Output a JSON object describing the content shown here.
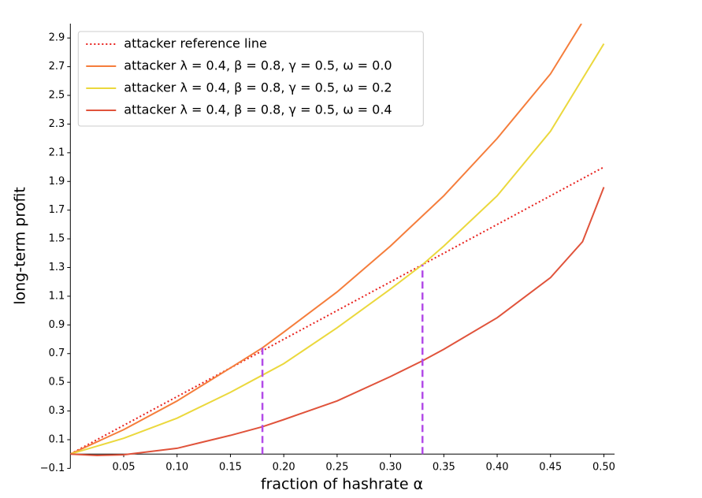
{
  "chart_data": {
    "type": "line",
    "xlabel": "fraction of hashrate α",
    "ylabel": "long-term profit",
    "xlim": [
      0,
      0.51
    ],
    "ylim": [
      -0.1,
      3.0
    ],
    "xticks": [
      0.05,
      {
        "value": 0.1,
        "label": "0.10"
      },
      0.15,
      {
        "value": 0.2,
        "label": "0.20"
      },
      0.25,
      {
        "value": 0.3,
        "label": "0.30"
      },
      0.35,
      {
        "value": 0.4,
        "label": "0.40"
      },
      0.45,
      {
        "value": 0.5,
        "label": "0.50"
      }
    ],
    "yticks": [
      {
        "value": -0.1,
        "label": "−0.1"
      },
      0.1,
      0.3,
      0.5,
      0.7,
      0.9,
      1.1,
      1.3,
      1.5,
      1.7,
      1.9,
      2.1,
      2.3,
      2.5,
      2.7,
      2.9
    ],
    "legend": "upper-left",
    "series": [
      {
        "name": "attacker reference line",
        "color": "#e8201c",
        "style": "dotted",
        "x": [
          0,
          0.5
        ],
        "values": [
          0,
          2.0
        ]
      },
      {
        "name": "attacker λ = 0.4, β = 0.8, γ = 0.5, ω = 0.0",
        "color": "#f57d3b",
        "style": "solid",
        "x": [
          0,
          0.05,
          0.1,
          0.15,
          0.18,
          0.2,
          0.25,
          0.3,
          0.35,
          0.4,
          0.45,
          0.479
        ],
        "values": [
          0,
          0.17,
          0.37,
          0.6,
          0.74,
          0.85,
          1.13,
          1.45,
          1.8,
          2.2,
          2.65,
          3.0
        ]
      },
      {
        "name": "attacker λ = 0.4, β = 0.8, γ = 0.5, ω = 0.2",
        "color": "#ebd83d",
        "style": "solid",
        "x": [
          0,
          0.05,
          0.1,
          0.15,
          0.18,
          0.2,
          0.25,
          0.3,
          0.33,
          0.35,
          0.4,
          0.45,
          0.5
        ],
        "values": [
          0,
          0.11,
          0.25,
          0.43,
          0.55,
          0.63,
          0.88,
          1.15,
          1.32,
          1.45,
          1.8,
          2.25,
          2.86
        ]
      },
      {
        "name": "attacker λ = 0.4, β = 0.8, γ = 0.5, ω = 0.4",
        "color": "#e0533b",
        "style": "solid",
        "x": [
          0,
          0.025,
          0.05,
          0.1,
          0.15,
          0.18,
          0.2,
          0.25,
          0.3,
          0.33,
          0.35,
          0.4,
          0.45,
          0.48,
          0.5
        ],
        "values": [
          0,
          -0.01,
          -0.005,
          0.04,
          0.13,
          0.19,
          0.24,
          0.37,
          0.54,
          0.65,
          0.73,
          0.95,
          1.23,
          1.48,
          1.86
        ]
      }
    ],
    "vlines": [
      {
        "x": 0.18,
        "y": 0.74
      },
      {
        "x": 0.33,
        "y": 1.32
      }
    ],
    "vline_color": "#b24be8"
  }
}
